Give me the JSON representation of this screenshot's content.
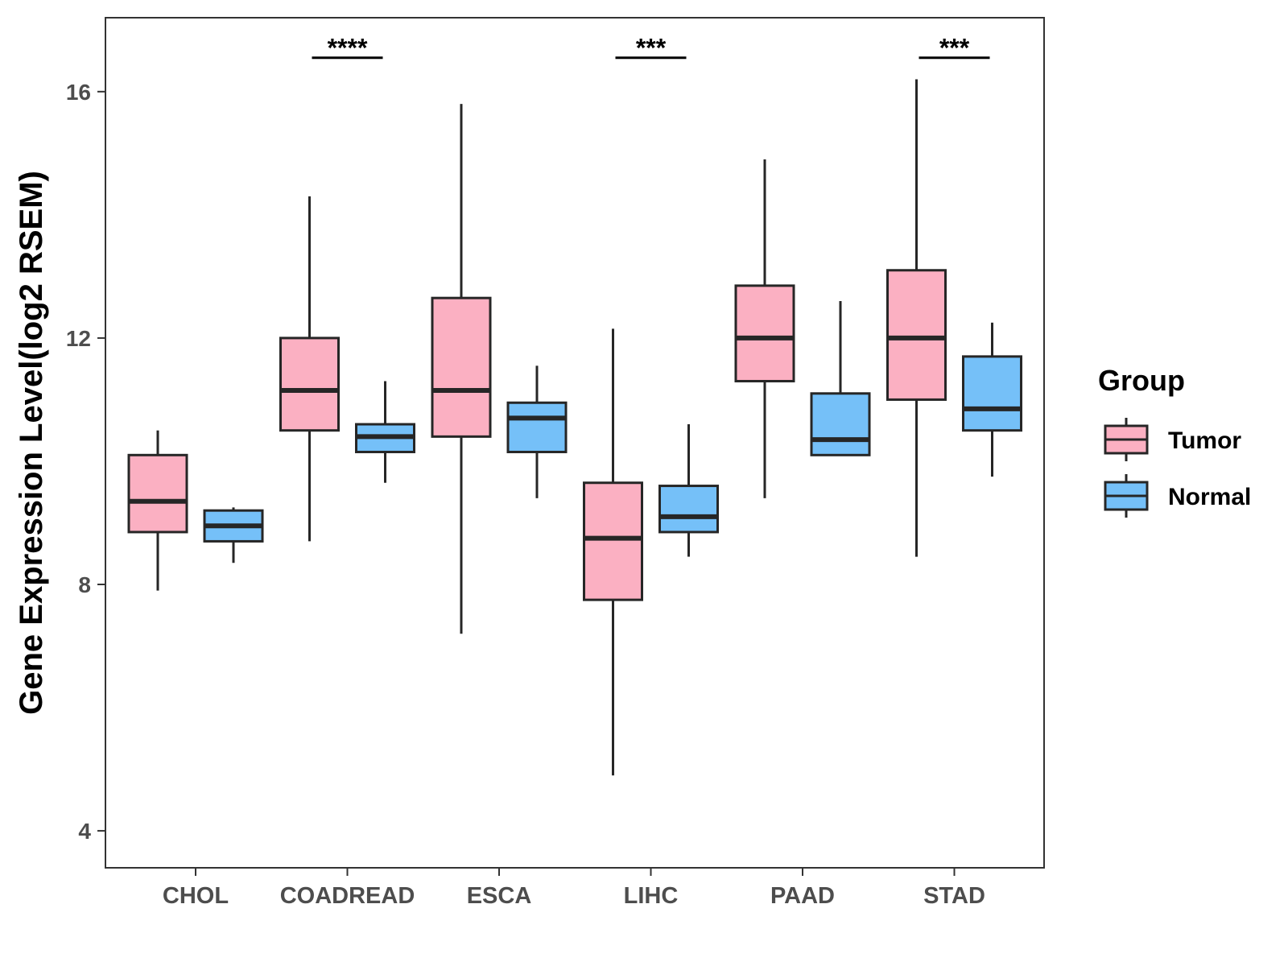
{
  "chart_data": {
    "type": "boxplot",
    "title": "",
    "xlabel": "",
    "ylabel": "Gene Expression Level(log2 RSEM)",
    "ylim": [
      3.4,
      17.2
    ],
    "yticks": [
      4,
      8,
      12,
      16
    ],
    "ytick_labels": [
      "4",
      "8",
      "12",
      "16"
    ],
    "categories": [
      "CHOL",
      "COADREAD",
      "ESCA",
      "LIHC",
      "PAAD",
      "STAD"
    ],
    "series": [
      {
        "name": "Tumor",
        "color": "#fbb0c2",
        "boxes": [
          {
            "min": 7.9,
            "q1": 8.85,
            "median": 9.35,
            "q3": 10.1,
            "max": 10.5
          },
          {
            "min": 8.7,
            "q1": 10.5,
            "median": 11.15,
            "q3": 12.0,
            "max": 14.3
          },
          {
            "min": 7.2,
            "q1": 10.4,
            "median": 11.15,
            "q3": 12.65,
            "max": 15.8
          },
          {
            "min": 4.9,
            "q1": 7.75,
            "median": 8.75,
            "q3": 9.65,
            "max": 12.15
          },
          {
            "min": 9.4,
            "q1": 11.3,
            "median": 12.0,
            "q3": 12.85,
            "max": 14.9
          },
          {
            "min": 8.45,
            "q1": 11.0,
            "median": 12.0,
            "q3": 13.1,
            "max": 16.2
          }
        ]
      },
      {
        "name": "Normal",
        "color": "#75c0f8",
        "boxes": [
          {
            "min": 8.35,
            "q1": 8.7,
            "median": 8.95,
            "q3": 9.2,
            "max": 9.25
          },
          {
            "min": 9.65,
            "q1": 10.15,
            "median": 10.4,
            "q3": 10.6,
            "max": 11.3
          },
          {
            "min": 9.4,
            "q1": 10.15,
            "median": 10.7,
            "q3": 10.95,
            "max": 11.55
          },
          {
            "min": 8.45,
            "q1": 8.85,
            "median": 9.1,
            "q3": 9.6,
            "max": 10.6
          },
          {
            "min": 10.1,
            "q1": 10.1,
            "median": 10.35,
            "q3": 11.1,
            "max": 12.6
          },
          {
            "min": 9.75,
            "q1": 10.5,
            "median": 10.85,
            "q3": 11.7,
            "max": 12.25
          }
        ]
      }
    ],
    "significance": [
      {
        "category": "COADREAD",
        "label": "****",
        "y": 16.55
      },
      {
        "category": "LIHC",
        "label": "***",
        "y": 16.55
      },
      {
        "category": "STAD",
        "label": "***",
        "y": 16.55
      }
    ],
    "legend": {
      "title": "Group",
      "position": "right",
      "entries": [
        {
          "label": "Tumor",
          "color": "#fbb0c2"
        },
        {
          "label": "Normal",
          "color": "#75c0f8"
        }
      ]
    },
    "grid": false
  }
}
